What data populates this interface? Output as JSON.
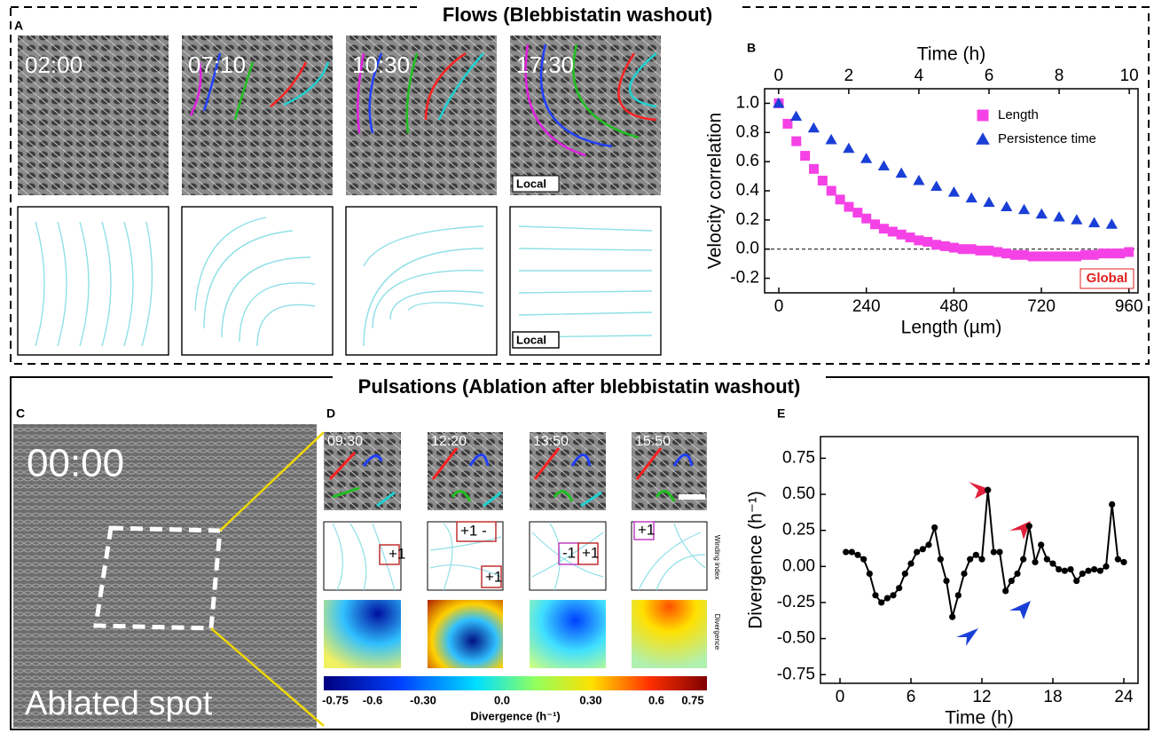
{
  "figure": {
    "flows_title": "Flows (Blebbistatin washout)",
    "pulsations_title": "Pulsations (Ablation after blebbistatin washout)",
    "panel_labels": [
      "A",
      "B",
      "C",
      "D",
      "E"
    ],
    "a_times": [
      "02:00",
      "07:10",
      "10:30",
      "17:30"
    ],
    "a_local_labels": [
      "Local",
      "Local"
    ],
    "c_time": "00:00",
    "c_label": "Ablated spot",
    "d_times": [
      "09:30",
      "12:20",
      "13:50",
      "15:50"
    ],
    "d_winding": [
      "+1",
      "+1 -",
      "+1",
      "-1",
      "+1",
      "+1"
    ],
    "d_row_labels": [
      "Winding index",
      "Divergence"
    ],
    "colorbar_ticks": [
      "-0.75",
      "-0.6",
      "-0.30",
      "0.0",
      "0.30",
      "0.6",
      "0.75"
    ],
    "colorbar_label": "Divergence (h⁻¹)"
  },
  "chart_data": [
    {
      "type": "scatter",
      "xlabel": "Length (µm)",
      "x2label": "Time (h)",
      "ylabel": "Velocity correlation",
      "xlim": [
        -39,
        985
      ],
      "xticks": [
        0,
        240,
        480,
        720,
        960
      ],
      "x2lim": [
        -0.4,
        10.25
      ],
      "x2ticks": [
        0,
        2,
        4,
        6,
        8,
        10
      ],
      "ylim": [
        -0.3,
        1.1
      ],
      "yticks": [
        {
          "value": -0.2,
          "label": "-0.2"
        },
        {
          "value": 0,
          "label": "0.0"
        },
        0.2,
        0.4,
        0.6,
        0.8,
        {
          "value": 1,
          "label": "1.0"
        }
      ],
      "reference_line": 0,
      "legend": "upper right",
      "annotation": "Global",
      "series": [
        {
          "name": "Length",
          "color": "#f542e6",
          "marker": "square",
          "x": [
            0,
            24,
            48,
            72,
            96,
            120,
            144,
            168,
            192,
            216,
            240,
            264,
            288,
            312,
            336,
            360,
            384,
            408,
            432,
            456,
            480,
            504,
            528,
            552,
            576,
            600,
            624,
            648,
            672,
            696,
            720,
            744,
            768,
            792,
            816,
            840,
            864,
            888,
            912,
            936,
            960
          ],
          "values": [
            1.0,
            0.86,
            0.74,
            0.64,
            0.55,
            0.47,
            0.4,
            0.34,
            0.29,
            0.25,
            0.21,
            0.17,
            0.14,
            0.12,
            0.1,
            0.08,
            0.06,
            0.05,
            0.03,
            0.02,
            0.01,
            0.0,
            0.0,
            -0.01,
            -0.01,
            -0.02,
            -0.03,
            -0.04,
            -0.04,
            -0.05,
            -0.05,
            -0.05,
            -0.05,
            -0.05,
            -0.05,
            -0.04,
            -0.04,
            -0.03,
            -0.03,
            -0.03,
            -0.02
          ]
        },
        {
          "name": "Persistence time",
          "color": "#1a3fd6",
          "marker": "triangle",
          "axis": "x2",
          "x": [
            0,
            0.5,
            1,
            1.5,
            2,
            2.5,
            3,
            3.5,
            4,
            4.5,
            5,
            5.5,
            6,
            6.5,
            7,
            7.5,
            8,
            8.5,
            9,
            9.5
          ],
          "values": [
            1.0,
            0.91,
            0.83,
            0.75,
            0.69,
            0.62,
            0.57,
            0.52,
            0.47,
            0.43,
            0.39,
            0.35,
            0.32,
            0.29,
            0.27,
            0.24,
            0.22,
            0.2,
            0.18,
            0.17
          ]
        }
      ]
    },
    {
      "type": "line",
      "xlabel": "Time (h)",
      "ylabel": "Divergence (h⁻¹)",
      "xlim": [
        -1.65,
        25.2
      ],
      "xticks": [
        0,
        6,
        12,
        18,
        24
      ],
      "ylim": [
        -0.81,
        0.9
      ],
      "yticks": [
        -0.75,
        {
          "value": -0.5,
          "label": "-0.50"
        },
        -0.25,
        {
          "value": 0,
          "label": "0.00"
        },
        0.25,
        {
          "value": 0.5,
          "label": "0.50"
        },
        0.75
      ],
      "series": [
        {
          "color": "#000000",
          "marker": "circle",
          "x": [
            0.5,
            1,
            1.5,
            2,
            2.5,
            3,
            3.5,
            4,
            4.5,
            5,
            5.5,
            6,
            6.5,
            7,
            7.5,
            8,
            8.5,
            9,
            9.5,
            10,
            10.5,
            11,
            11.5,
            12,
            12.5,
            13,
            13.5,
            14,
            14.5,
            15,
            15.5,
            16,
            16.5,
            17,
            17.5,
            18,
            18.5,
            19,
            19.5,
            20,
            20.5,
            21,
            21.5,
            22,
            22.5,
            23,
            23.5,
            24
          ],
          "values": [
            0.1,
            0.1,
            0.08,
            0.05,
            -0.05,
            -0.2,
            -0.25,
            -0.22,
            -0.2,
            -0.15,
            -0.05,
            0.02,
            0.1,
            0.12,
            0.15,
            0.27,
            0.05,
            -0.1,
            -0.35,
            -0.2,
            -0.05,
            0.05,
            0.08,
            0.05,
            0.53,
            0.1,
            0.1,
            -0.17,
            -0.1,
            -0.05,
            0.05,
            0.28,
            0.03,
            0.15,
            0.05,
            0.02,
            -0.02,
            -0.03,
            -0.02,
            -0.1,
            -0.05,
            -0.03,
            -0.02,
            -0.03,
            0.0,
            0.43,
            0.05,
            0.03
          ]
        }
      ]
    }
  ]
}
